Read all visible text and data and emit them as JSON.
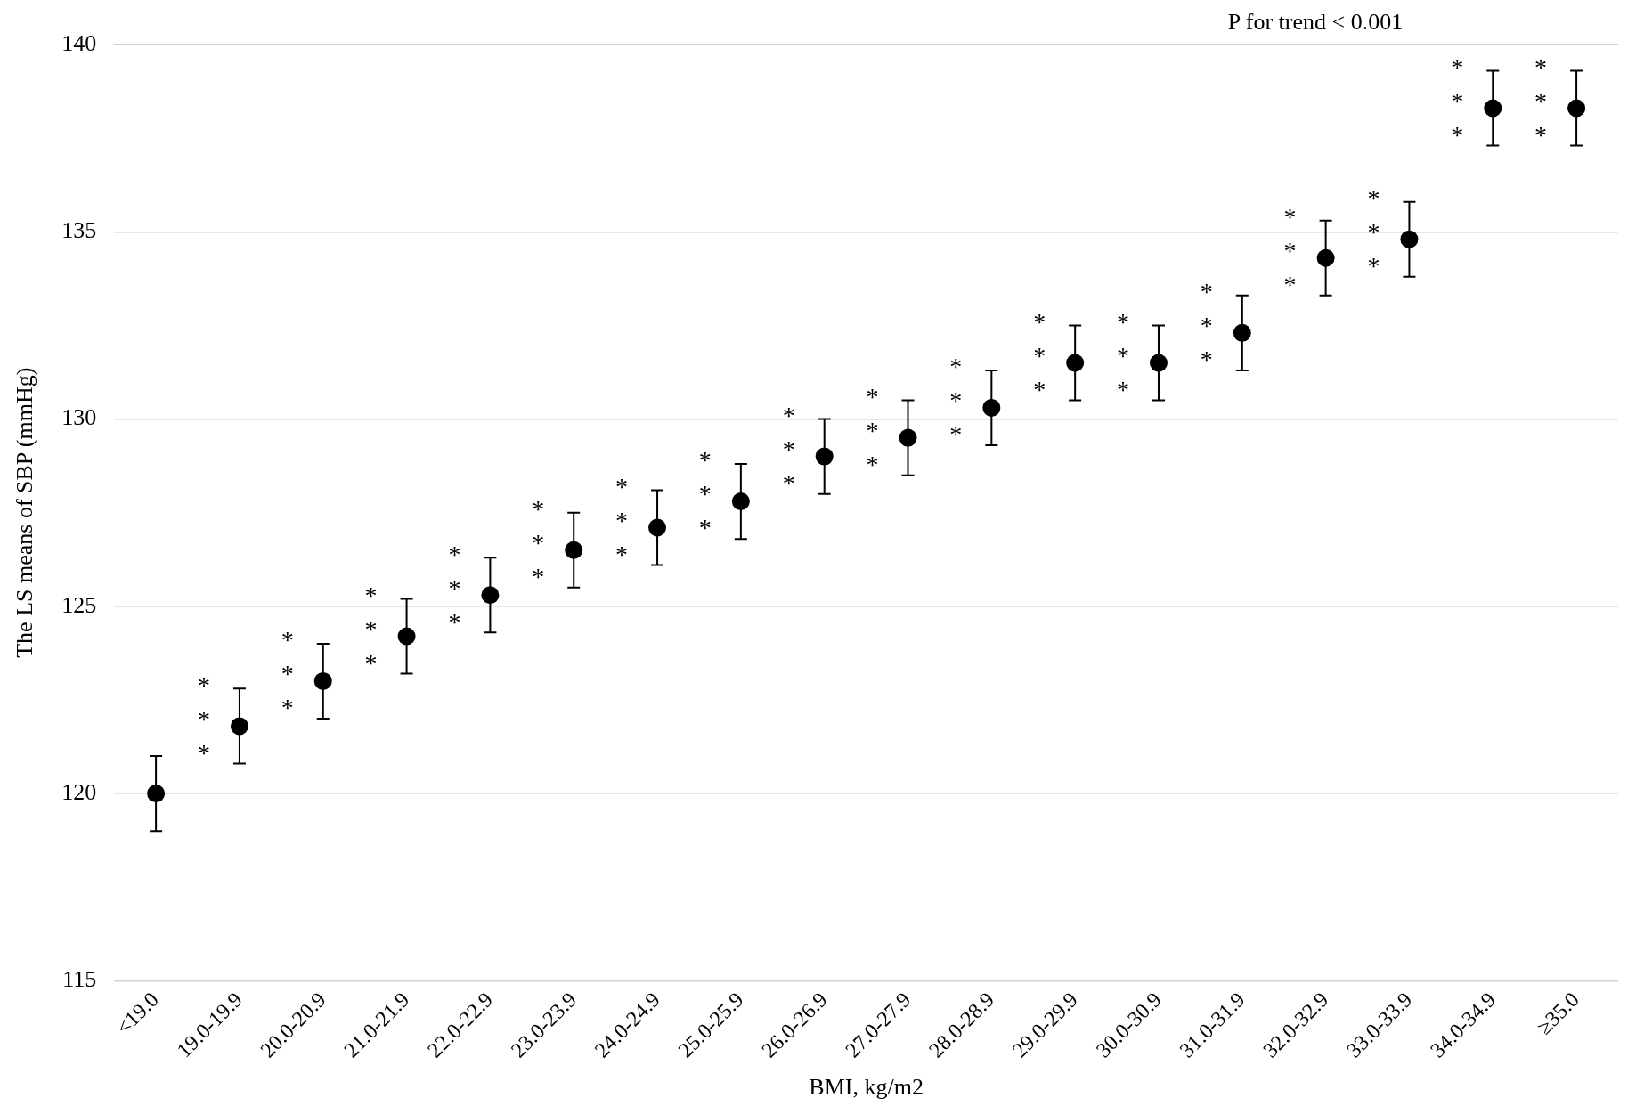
{
  "chart_data": {
    "type": "scatter",
    "xlabel": "BMI, kg/m2",
    "ylabel": "The LS means of SBP (mmHg)",
    "categories": [
      "<19.0",
      "19.0-19.9",
      "20.0-20.9",
      "21.0-21.9",
      "22.0-22.9",
      "23.0-23.9",
      "24.0-24.9",
      "25.0-25.9",
      "26.0-26.9",
      "27.0-27.9",
      "28.0-28.9",
      "29.0-29.9",
      "30.0-30.9",
      "31.0-31.9",
      "32.0-32.9",
      "33.0-33.9",
      "34.0-34.9",
      "≥35.0"
    ],
    "series": [
      {
        "color": "#000000",
        "values": [
          120.0,
          121.8,
          123.0,
          124.2,
          125.3,
          126.5,
          127.1,
          127.8,
          129.0,
          129.5,
          130.3,
          131.5,
          131.5,
          132.3,
          134.3,
          134.8,
          138.3,
          138.3
        ],
        "errors": [
          1,
          1,
          1,
          1,
          1,
          1,
          1,
          1,
          1,
          1,
          1,
          1,
          1,
          1,
          1,
          1,
          1,
          1
        ]
      }
    ],
    "ylim": [
      115,
      140
    ],
    "yticks": [
      115,
      120,
      125,
      130,
      135,
      140
    ],
    "grid": "y",
    "legend": false,
    "marker": "circle",
    "annotations": [
      "P for trend < 0.001",
      {
        "text": "***",
        "x": "19.0-19.9",
        "y": 121.8
      },
      {
        "text": "***",
        "x": "20.0-20.9",
        "y": 123.0
      },
      {
        "text": "***",
        "x": "21.0-21.9",
        "y": 124.2
      },
      {
        "text": "***",
        "x": "22.0-22.9",
        "y": 125.3
      },
      {
        "text": "***",
        "x": "23.0-23.9",
        "y": 126.5
      },
      {
        "text": "***",
        "x": "24.0-24.9",
        "y": 127.1
      },
      {
        "text": "***",
        "x": "25.0-25.9",
        "y": 127.8
      },
      {
        "text": "***",
        "x": "26.0-26.9",
        "y": 129.0
      },
      {
        "text": "***",
        "x": "27.0-27.9",
        "y": 129.5
      },
      {
        "text": "***",
        "x": "28.0-28.9",
        "y": 130.3
      },
      {
        "text": "***",
        "x": "29.0-29.9",
        "y": 131.5
      },
      {
        "text": "***",
        "x": "30.0-30.9",
        "y": 131.5
      },
      {
        "text": "***",
        "x": "31.0-31.9",
        "y": 132.3
      },
      {
        "text": "***",
        "x": "32.0-32.9",
        "y": 134.3
      },
      {
        "text": "***",
        "x": "33.0-33.9",
        "y": 134.8
      },
      {
        "text": "***",
        "x": "34.0-34.9",
        "y": 138.3
      },
      {
        "text": "***",
        "x": "≥35.0",
        "y": 138.3
      }
    ]
  }
}
